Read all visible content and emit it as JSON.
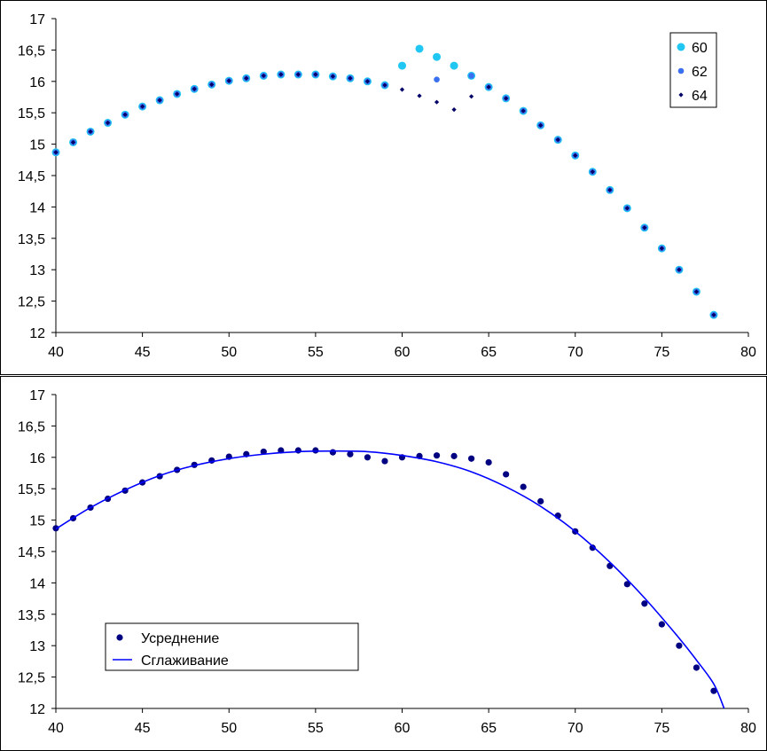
{
  "chart_data": [
    {
      "type": "scatter",
      "title": "",
      "xlabel": "",
      "ylabel": "",
      "xlim": [
        40,
        80
      ],
      "ylim": [
        12,
        17
      ],
      "xticks": [
        "40",
        "45",
        "50",
        "55",
        "60",
        "65",
        "70",
        "75",
        "80"
      ],
      "yticks": [
        "12",
        "12,5",
        "13",
        "13,5",
        "14",
        "14,5",
        "15",
        "15,5",
        "16",
        "16,5",
        "17"
      ],
      "legend_position": "top-right",
      "series": [
        {
          "name": "60",
          "color": "#1fc7f2",
          "marker": "circle-large",
          "x": [
            40,
            41,
            42,
            43,
            44,
            45,
            46,
            47,
            48,
            49,
            50,
            51,
            52,
            53,
            54,
            55,
            56,
            57,
            58,
            59,
            60,
            61,
            62,
            63,
            64,
            65,
            66,
            67,
            68,
            69,
            70,
            71,
            72,
            73,
            74,
            75,
            76,
            77,
            78
          ],
          "y": [
            14.87,
            15.03,
            15.2,
            15.34,
            15.47,
            15.6,
            15.7,
            15.8,
            15.88,
            15.95,
            16.01,
            16.05,
            16.09,
            16.11,
            16.11,
            16.11,
            16.08,
            16.05,
            16.0,
            15.94,
            16.25,
            16.52,
            16.39,
            16.25,
            16.09,
            15.91,
            15.73,
            15.53,
            15.3,
            15.07,
            14.82,
            14.56,
            14.27,
            13.98,
            13.67,
            13.34,
            13.0,
            12.65,
            12.28
          ]
        },
        {
          "name": "62",
          "color": "#3a6ff0",
          "marker": "circle-medium",
          "x": [
            40,
            41,
            42,
            43,
            44,
            45,
            46,
            47,
            48,
            49,
            50,
            51,
            52,
            53,
            54,
            55,
            56,
            57,
            58,
            59,
            62,
            64,
            65,
            66,
            67,
            68,
            69,
            70,
            71,
            72,
            73,
            74,
            75,
            76,
            77,
            78
          ],
          "y": [
            14.87,
            15.03,
            15.2,
            15.34,
            15.47,
            15.6,
            15.7,
            15.8,
            15.88,
            15.95,
            16.01,
            16.05,
            16.09,
            16.11,
            16.11,
            16.11,
            16.08,
            16.05,
            16.0,
            15.94,
            16.03,
            16.09,
            15.91,
            15.73,
            15.53,
            15.3,
            15.07,
            14.82,
            14.56,
            14.27,
            13.98,
            13.67,
            13.34,
            13.0,
            12.65,
            12.28
          ]
        },
        {
          "name": "64",
          "color": "#000066",
          "marker": "diamond-small",
          "x": [
            40,
            41,
            42,
            43,
            44,
            45,
            46,
            47,
            48,
            49,
            50,
            51,
            52,
            53,
            54,
            55,
            56,
            57,
            58,
            59,
            60,
            61,
            62,
            63,
            64,
            65,
            66,
            67,
            68,
            69,
            70,
            71,
            72,
            73,
            74,
            75,
            76,
            77,
            78
          ],
          "y": [
            14.87,
            15.03,
            15.2,
            15.34,
            15.47,
            15.6,
            15.7,
            15.8,
            15.88,
            15.95,
            16.01,
            16.05,
            16.09,
            16.11,
            16.11,
            16.11,
            16.08,
            16.05,
            16.0,
            15.94,
            15.87,
            15.77,
            15.67,
            15.55,
            15.76,
            15.91,
            15.73,
            15.53,
            15.3,
            15.07,
            14.82,
            14.56,
            14.27,
            13.98,
            13.67,
            13.34,
            13.0,
            12.65,
            12.28
          ]
        }
      ]
    },
    {
      "type": "scatter",
      "title": "",
      "xlabel": "",
      "ylabel": "",
      "xlim": [
        40,
        80
      ],
      "ylim": [
        12,
        17
      ],
      "xticks": [
        "40",
        "45",
        "50",
        "55",
        "60",
        "65",
        "70",
        "75",
        "80"
      ],
      "yticks": [
        "12",
        "12,5",
        "13",
        "13,5",
        "14",
        "14,5",
        "15",
        "15,5",
        "16",
        "16,5",
        "17"
      ],
      "legend_position": "bottom-left",
      "series": [
        {
          "name": "Усреднение",
          "color": "#000080",
          "marker": "circle",
          "x": [
            40,
            41,
            42,
            43,
            44,
            45,
            46,
            47,
            48,
            49,
            50,
            51,
            52,
            53,
            54,
            55,
            56,
            57,
            58,
            59,
            60,
            61,
            62,
            63,
            64,
            65,
            66,
            67,
            68,
            69,
            70,
            71,
            72,
            73,
            74,
            75,
            76,
            77,
            78
          ],
          "y": [
            14.87,
            15.03,
            15.2,
            15.34,
            15.47,
            15.6,
            15.7,
            15.8,
            15.88,
            15.95,
            16.01,
            16.05,
            16.09,
            16.11,
            16.11,
            16.11,
            16.08,
            16.05,
            16.0,
            15.94,
            16.0,
            16.02,
            16.03,
            16.02,
            15.98,
            15.92,
            15.73,
            15.53,
            15.3,
            15.07,
            14.82,
            14.56,
            14.27,
            13.98,
            13.67,
            13.34,
            13.0,
            12.65,
            12.28
          ]
        },
        {
          "name": "Сглаживание",
          "color": "#0000ff",
          "marker": "line",
          "x": [
            40,
            42,
            44,
            46,
            48,
            50,
            52,
            54,
            56,
            58,
            60,
            62,
            64,
            66,
            68,
            70,
            72,
            74,
            76,
            77,
            78,
            78.6
          ],
          "y": [
            14.86,
            15.2,
            15.48,
            15.71,
            15.87,
            15.98,
            16.05,
            16.09,
            16.1,
            16.09,
            16.03,
            15.93,
            15.77,
            15.53,
            15.22,
            14.82,
            14.33,
            13.76,
            13.12,
            12.77,
            12.39,
            12.0
          ]
        }
      ]
    }
  ]
}
